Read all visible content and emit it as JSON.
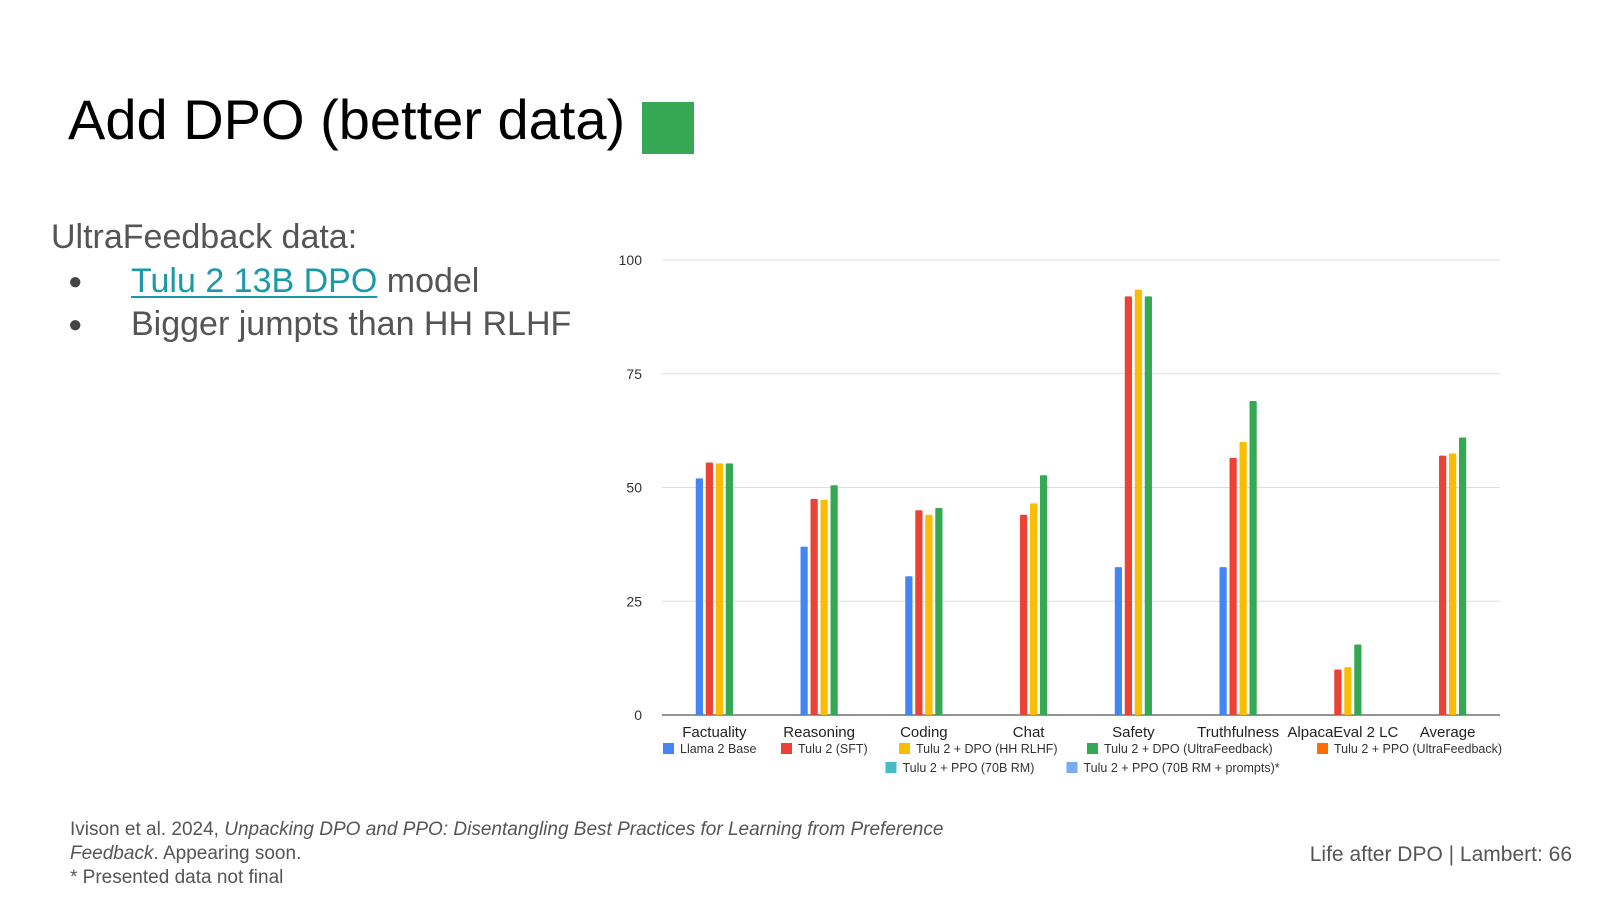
{
  "slide": {
    "title": "Add DPO (better data)",
    "title_square_color": "#34a853",
    "heading": "UltraFeedback data:",
    "bullets": [
      {
        "link_text": "Tulu 2 13B DPO",
        "text": " model"
      },
      {
        "link_text": "",
        "text": "Bigger jumpts than HH RLHF"
      }
    ],
    "citation": {
      "authors": "Ivison et al. 2024, ",
      "paper_title": "Unpacking DPO and PPO: Disentangling Best Practices for Learning from Preference Feedback",
      "tail": ". Appearing soon.",
      "note": "* Presented data not final"
    },
    "footer": "Life after DPO | Lambert: 66"
  },
  "chart_data": {
    "type": "bar",
    "categories": [
      "Factuality",
      "Reasoning",
      "Coding",
      "Chat",
      "Safety",
      "Truthfulness",
      "AlpacaEval 2 LC",
      "Average"
    ],
    "ylim": [
      0,
      100
    ],
    "yticks": [
      0,
      25,
      50,
      75,
      100
    ],
    "grid": true,
    "legend_position": "bottom",
    "series": [
      {
        "name": "Llama 2 Base",
        "color": "#4285f4",
        "values": [
          52,
          37,
          30.5,
          null,
          32.5,
          32.5,
          null,
          null
        ]
      },
      {
        "name": "Tulu 2 (SFT)",
        "color": "#ea4335",
        "values": [
          55.5,
          47.5,
          45,
          44,
          92,
          56.5,
          10,
          57
        ]
      },
      {
        "name": "Tulu 2 + DPO (HH RLHF)",
        "color": "#fbbc04",
        "values": [
          55.3,
          47.3,
          44,
          46.5,
          93.5,
          60,
          10.5,
          57.5
        ]
      },
      {
        "name": "Tulu 2 + DPO (UltraFeedback)",
        "color": "#34a853",
        "values": [
          55.3,
          50.5,
          45.5,
          52.7,
          92,
          69,
          15.5,
          61
        ]
      },
      {
        "name": "Tulu 2 + PPO (UltraFeedback)",
        "color": "#ff6d01",
        "values": [
          null,
          null,
          null,
          null,
          null,
          null,
          null,
          null
        ]
      },
      {
        "name": "Tulu 2 + PPO (70B RM)",
        "color": "#46bdc6",
        "values": [
          null,
          null,
          null,
          null,
          null,
          null,
          null,
          null
        ]
      },
      {
        "name": "Tulu 2 + PPO (70B RM + prompts)*",
        "color": "#7baaf7",
        "values": [
          null,
          null,
          null,
          null,
          null,
          null,
          null,
          null
        ]
      }
    ]
  }
}
